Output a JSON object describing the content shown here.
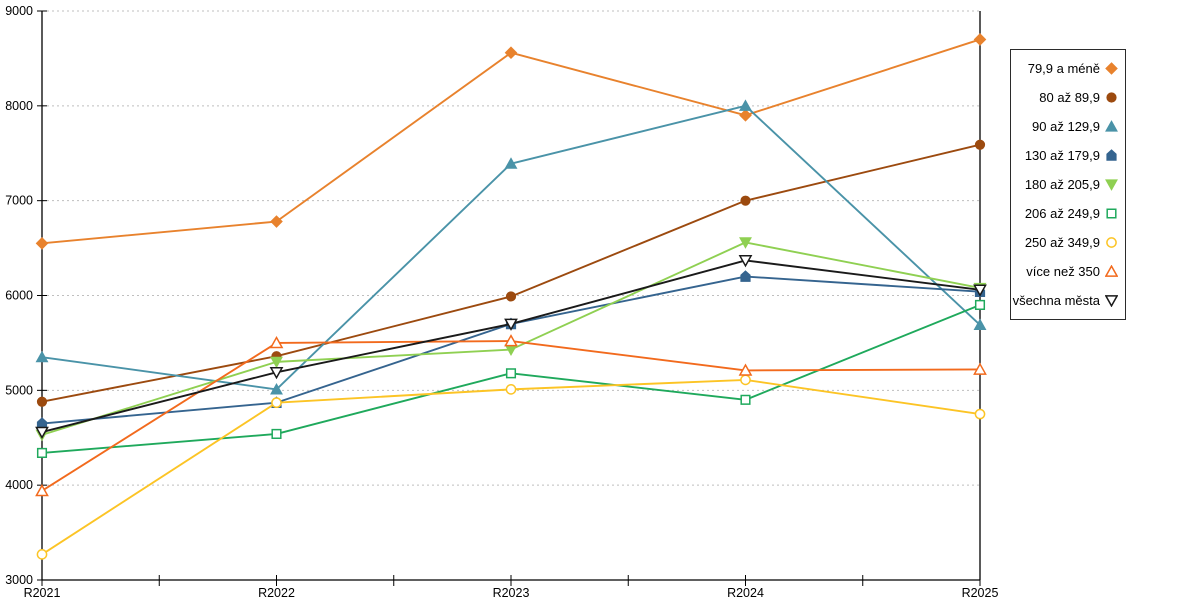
{
  "chart_data": {
    "type": "line",
    "title": "",
    "xlabel": "",
    "ylabel": "",
    "categories": [
      "R2021",
      "R2022",
      "R2023",
      "R2024",
      "R2025"
    ],
    "series": [
      {
        "name": "79,9 a méně",
        "color": "#E8822D",
        "marker": "diamond",
        "fill": "solid",
        "values": [
          6550,
          6780,
          8560,
          7900,
          8700
        ]
      },
      {
        "name": "80 až 89,9",
        "color": "#9C4A0F",
        "marker": "circle",
        "fill": "solid",
        "values": [
          4880,
          5360,
          5990,
          7000,
          7590
        ]
      },
      {
        "name": "90 až 129,9",
        "color": "#4A93A8",
        "marker": "triangle-up",
        "fill": "solid",
        "values": [
          5350,
          5010,
          7390,
          8000,
          5690
        ]
      },
      {
        "name": "130 až 179,9",
        "color": "#35648F",
        "marker": "pentagon",
        "fill": "solid",
        "values": [
          4650,
          4870,
          5700,
          6200,
          6040
        ]
      },
      {
        "name": "180 až 205,9",
        "color": "#8FD052",
        "marker": "triangle-down",
        "fill": "solid",
        "values": [
          4530,
          5300,
          5430,
          6560,
          6080
        ]
      },
      {
        "name": "206 až 249,9",
        "color": "#1FA95C",
        "marker": "square",
        "fill": "hollow",
        "values": [
          4340,
          4540,
          5180,
          4900,
          5900
        ]
      },
      {
        "name": "250 až 349,9",
        "color": "#FCC425",
        "marker": "circle",
        "fill": "hollow",
        "values": [
          3270,
          4870,
          5010,
          5110,
          4750
        ]
      },
      {
        "name": "více než 350",
        "color": "#F26A1D",
        "marker": "triangle-up",
        "fill": "hollow",
        "values": [
          3940,
          5500,
          5520,
          5210,
          5220
        ]
      },
      {
        "name": "všechna města",
        "color": "#1A1A1A",
        "marker": "triangle-down",
        "fill": "hollow",
        "values": [
          4560,
          5190,
          5700,
          6370,
          6060
        ]
      }
    ],
    "y_axis": {
      "min": 3000,
      "max": 9000,
      "step": 1000,
      "tick_labels": [
        "3000",
        "4000",
        "5000",
        "6000",
        "7000",
        "8000",
        "9000"
      ]
    },
    "x_axis": {
      "tick_labels": [
        "R2021",
        "R2022",
        "R2023",
        "R2024",
        "R2025"
      ],
      "minor_ticks_at_midpoints": true
    },
    "grid": "horizontal-dashed",
    "legend_position": "right",
    "colors": {
      "grid": "#BFBFBF",
      "axis": "#000000",
      "legend_border": "#2B2B2B",
      "background": "#FFFFFF"
    }
  }
}
